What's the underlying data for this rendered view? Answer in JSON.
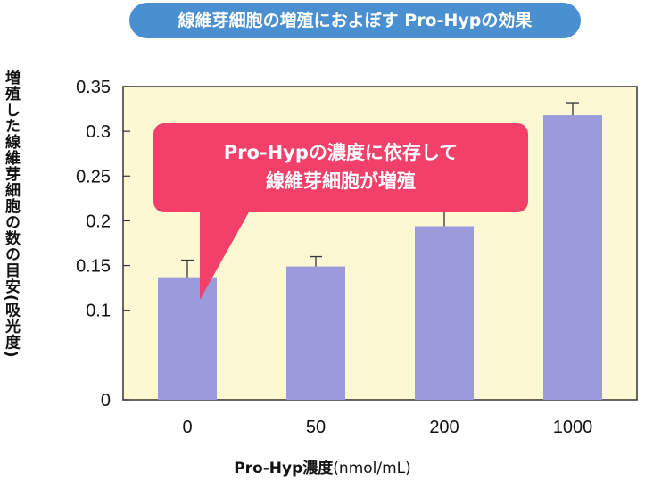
{
  "header": {
    "title": "線維芽細胞の増殖におよぼす Pro-Hypの効果"
  },
  "callout": {
    "line1": "Pro-Hypの濃度に依存して",
    "line2": "線維芽細胞が増殖"
  },
  "colors": {
    "bar": "#9b9bdc",
    "plot_bg": "#fcf8d4",
    "title_bg": "#4a8fd0",
    "callout_bg": "#f2406a"
  },
  "chart_data": {
    "type": "bar",
    "ylabel": "増殖した線維芽細胞の数の目安(吸光度)",
    "xlabel_bold": "Pro-Hyp濃度",
    "xlabel_unit": "(nmol/mL)",
    "categories": [
      "0",
      "50",
      "200",
      "1000"
    ],
    "values": [
      0.137,
      0.149,
      0.194,
      0.318
    ],
    "errors": [
      0.019,
      0.011,
      0.033,
      0.014
    ],
    "ylim": [
      0,
      0.35
    ],
    "yticks": [
      "0",
      "0.1",
      "0.15",
      "0.2",
      "0.25",
      "0.3",
      "0.35"
    ],
    "ytick_values": [
      0,
      0.1,
      0.15,
      0.2,
      0.25,
      0.3,
      0.35
    ],
    "grid": false,
    "legend": "none"
  }
}
